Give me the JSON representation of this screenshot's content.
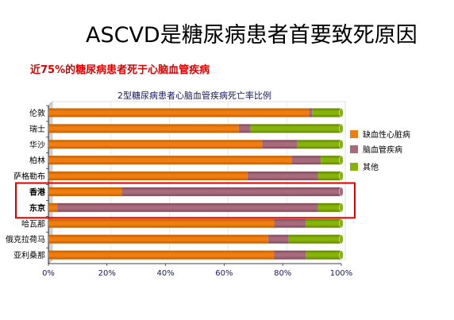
{
  "slide": {
    "title": "ASCVD是糖尿病患者首要致死原因",
    "subtitle": "近75%的糖尿病患者死于心脑血管疾病"
  },
  "colors": {
    "ischemic_heart": "#f07d10",
    "cerebrovascular": "#a86b7c",
    "other": "#88b40a",
    "highlight": "#e00000",
    "subtitle": "#e00000"
  },
  "chart_data": {
    "type": "bar",
    "orientation": "horizontal",
    "stacked": true,
    "title": "2型糖尿病患者心脑血管疾病死亡率比例",
    "categories": [
      "伦敦",
      "瑞士",
      "华沙",
      "柏林",
      "萨格勒布",
      "香港",
      "东京",
      "哈瓦那",
      "俄克拉荷马",
      "亚利桑那"
    ],
    "series": [
      {
        "name": "缺血性心脏病",
        "values": [
          89,
          65,
          73,
          83,
          68,
          25,
          3,
          77,
          75,
          77
        ]
      },
      {
        "name": "脑血管疾病",
        "values": [
          1,
          4,
          12,
          10,
          24,
          75,
          89,
          11,
          7,
          11
        ]
      },
      {
        "name": "其他",
        "values": [
          10,
          31,
          15,
          7,
          8,
          0,
          8,
          12,
          18,
          12
        ]
      }
    ],
    "xlim": [
      0,
      100
    ],
    "x_ticks": [
      "0%",
      "20%",
      "40%",
      "60%",
      "80%",
      "100%"
    ],
    "legend_position": "right",
    "highlighted_categories": [
      "香港",
      "东京"
    ]
  }
}
